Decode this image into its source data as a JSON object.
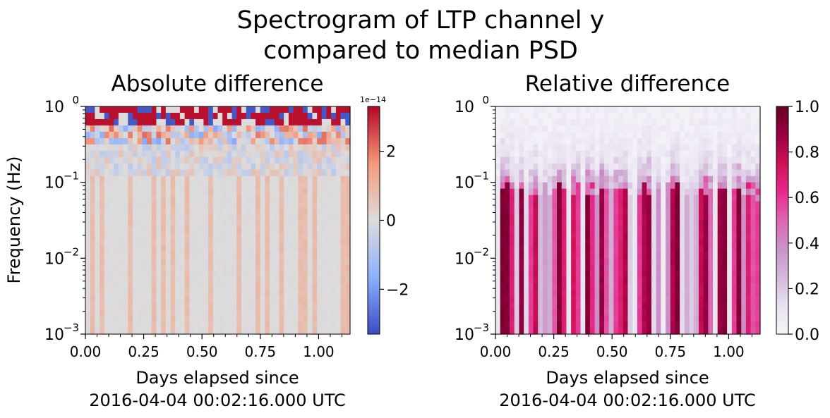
{
  "figure": {
    "suptitle_line1": "Spectrogram of LTP channel y",
    "suptitle_line2": "compared to median PSD"
  },
  "chart_data": [
    {
      "type": "heatmap",
      "title": "Absolute difference",
      "ylabel": "Frequency (Hz)",
      "xlabel_line1": "Days elapsed since",
      "xlabel_line2": "2016-04-04 00:02:16.000 UTC",
      "xlim": [
        0,
        1.135
      ],
      "ylim": [
        0.001,
        1
      ],
      "yscale": "log",
      "x_ticks": [
        0,
        0.25,
        0.5,
        0.75,
        1.0
      ],
      "x_tick_labels": [
        "0.00",
        "0.25",
        "0.50",
        "0.75",
        "1.00"
      ],
      "y_ticks": [
        0.001,
        0.01,
        0.1,
        1
      ],
      "y_tick_labels": [
        {
          "base": "10",
          "exp": "−3"
        },
        {
          "base": "10",
          "exp": "−2"
        },
        {
          "base": "10",
          "exp": "−1"
        },
        {
          "base": "10",
          "exp": "0"
        }
      ],
      "colormap": "coolwarm",
      "colorbar": {
        "range": [
          -3.3e-14,
          3.3e-14
        ],
        "ticks": [
          -2e-14,
          0,
          2e-14
        ],
        "tick_labels": [
          "−2",
          "0",
          "2"
        ],
        "offset_label": "1e−14",
        "colors": [
          "#3b4cc0",
          "#8db0fe",
          "#dddcdc",
          "#f49a7b",
          "#b40426"
        ]
      },
      "grid": false
    },
    {
      "type": "heatmap",
      "title": "Relative difference",
      "xlabel_line1": "Days elapsed since",
      "xlabel_line2": "2016-04-04 00:02:16.000 UTC",
      "xlim": [
        0,
        1.135
      ],
      "ylim": [
        0.001,
        1
      ],
      "yscale": "log",
      "x_ticks": [
        0,
        0.25,
        0.5,
        0.75,
        1.0
      ],
      "x_tick_labels": [
        "0.00",
        "0.25",
        "0.50",
        "0.75",
        "1.00"
      ],
      "y_ticks": [
        0.001,
        0.01,
        0.1,
        1
      ],
      "y_tick_labels": [
        {
          "base": "10",
          "exp": "−3"
        },
        {
          "base": "10",
          "exp": "−2"
        },
        {
          "base": "10",
          "exp": "−1"
        },
        {
          "base": "10",
          "exp": "0"
        }
      ],
      "colormap": "PuRd",
      "column_low_freq_intensity": [
        0.1,
        0.97,
        0.95,
        0.7,
        0.2,
        0.92,
        0.15,
        0.6,
        0.8,
        0.25,
        0.35,
        0.3,
        0.55,
        0.95,
        0.7,
        0.1,
        0.75,
        0.6,
        0.1,
        0.95,
        0.65,
        0.4,
        0.9,
        0.55,
        0.3,
        0.6,
        0.7,
        0.85,
        0.2,
        0.1,
        0.6,
        0.85,
        0.9,
        0.15,
        0.4,
        0.05,
        0.4,
        0.85,
        0.95,
        0.15,
        0.3,
        0.2,
        0.3,
        0.8,
        0.9,
        0.5,
        0.1,
        0.9,
        0.95,
        0.1,
        0.6,
        0.95,
        0.4,
        0.7,
        0.55,
        0.6
      ],
      "colorbar": {
        "range": [
          0,
          1
        ],
        "ticks": [
          0,
          0.2,
          0.4,
          0.6,
          0.8,
          1.0
        ],
        "tick_labels": [
          "0.0",
          "0.2",
          "0.4",
          "0.6",
          "0.8",
          "1.0"
        ],
        "colors": [
          "#f7f4f9",
          "#e7e1ef",
          "#d4b9da",
          "#c994c7",
          "#df65b0",
          "#e7298a",
          "#ce1256",
          "#980043",
          "#67001f"
        ]
      },
      "grid": false
    }
  ]
}
